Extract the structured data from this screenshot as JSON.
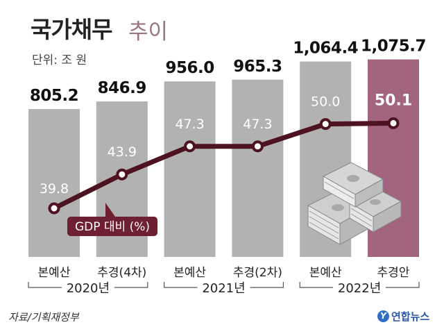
{
  "title": "국가채무",
  "subtitle": "추이",
  "unit_label": "단위: 조 원",
  "source": "자료/기획재정부",
  "logo": "연합뉴스",
  "colors": {
    "bar": "#b2b2b2",
    "bar_highlight": "#a3647f",
    "line": "#4e1320",
    "badge": "#6e1f30"
  },
  "chart_data": {
    "type": "bar",
    "title": "국가채무 추이",
    "ylabel": "조 원",
    "categories": [
      "본예산",
      "추경(4차)",
      "본예산",
      "추경(2차)",
      "본예산",
      "추경안"
    ],
    "groups": [
      {
        "label": "2020년",
        "categories": [
          "본예산",
          "추경(4차)"
        ]
      },
      {
        "label": "2021년",
        "categories": [
          "본예산",
          "추경(2차)"
        ]
      },
      {
        "label": "2022년",
        "categories": [
          "본예산",
          "추경안"
        ]
      }
    ],
    "series": [
      {
        "name": "국가채무",
        "values": [
          805.2,
          846.9,
          956.0,
          965.3,
          1064.4,
          1075.7
        ],
        "labels": [
          "805.2",
          "846.9",
          "956.0",
          "965.3",
          "1,064.4",
          "1,075.7"
        ]
      },
      {
        "name": "GDP 대비 (%)",
        "type": "line",
        "values": [
          39.8,
          43.9,
          47.3,
          47.3,
          50.0,
          50.1
        ],
        "labels": [
          "39.8",
          "43.9",
          "47.3",
          "47.3",
          "50.0",
          "50.1"
        ]
      }
    ],
    "highlight_index": 5,
    "ylim": [
      0,
      1100
    ]
  }
}
